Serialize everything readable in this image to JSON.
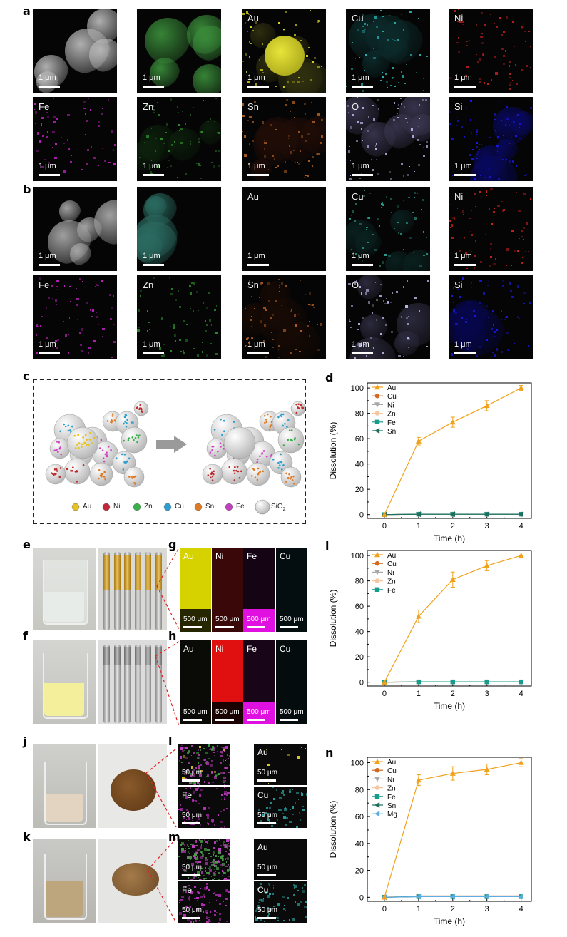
{
  "panel_letters": {
    "a": "a",
    "b": "b",
    "c": "c",
    "d": "d",
    "e": "e",
    "f": "f",
    "g": "g",
    "h": "h",
    "i": "i",
    "j": "j",
    "k": "k",
    "l": "l",
    "m": "m",
    "n": "n"
  },
  "scale": {
    "um1": "1 μm",
    "um500": "500 μm",
    "um50": "50 μm"
  },
  "elements": {
    "au": "Au",
    "cu": "Cu",
    "ni": "Ni",
    "fe": "Fe",
    "zn": "Zn",
    "sn": "Sn",
    "o": "O",
    "si": "Si",
    "mg": "Mg"
  },
  "legend_c": {
    "au": "Au",
    "ni": "Ni",
    "zn": "Zn",
    "cu": "Cu",
    "sn": "Sn",
    "fe": "Fe",
    "sio2": "SiO",
    "sio2_sub": "2"
  },
  "colors": {
    "au": "#f0a21c",
    "cu": "#d2691e",
    "ni": "#a8a8a8",
    "zn": "#f5c6a0",
    "fe": "#179c8a",
    "sn": "#1f6d5e",
    "mg": "#5dade2"
  },
  "chart_data": [
    {
      "type": "line",
      "panel": "d",
      "xlabel": "Time (h)",
      "ylabel": "Dissolution (%)",
      "x": [
        0,
        1,
        2,
        3,
        4
      ],
      "xlim": [
        -0.5,
        4.3
      ],
      "ylim": [
        -3,
        104
      ],
      "xticks": [
        "0",
        "1",
        "2",
        "3",
        "4"
      ],
      "yticks": [
        "0",
        "20",
        "40",
        "60",
        "80",
        "100"
      ],
      "series": [
        {
          "name": "Au",
          "values": [
            0,
            58,
            73,
            86,
            100
          ],
          "err": [
            0,
            3,
            4,
            4,
            2
          ]
        },
        {
          "name": "Cu",
          "values": [
            0,
            0.3,
            0.3,
            0.3,
            0.3
          ]
        },
        {
          "name": "Ni",
          "values": [
            0,
            0.3,
            0.3,
            0.3,
            0.3
          ]
        },
        {
          "name": "Zn",
          "values": [
            0,
            0.3,
            0.3,
            0.3,
            0.3
          ]
        },
        {
          "name": "Fe",
          "values": [
            0,
            0.3,
            0.3,
            0.3,
            0.3
          ]
        },
        {
          "name": "Sn",
          "values": [
            0,
            0.3,
            0.3,
            0.3,
            0.3
          ]
        }
      ]
    },
    {
      "type": "line",
      "panel": "i",
      "xlabel": "Time (h)",
      "ylabel": "Dissolution (%)",
      "x": [
        0,
        1,
        2,
        3,
        4
      ],
      "xlim": [
        -0.5,
        4.3
      ],
      "ylim": [
        -3,
        104
      ],
      "xticks": [
        "0",
        "1",
        "2",
        "3",
        "4"
      ],
      "yticks": [
        "0",
        "20",
        "40",
        "60",
        "80",
        "100"
      ],
      "series": [
        {
          "name": "Au",
          "values": [
            0,
            52,
            81,
            92,
            100
          ],
          "err": [
            0,
            5,
            6,
            4,
            2
          ]
        },
        {
          "name": "Cu",
          "values": [
            0,
            0.3,
            0.3,
            0.3,
            0.3
          ]
        },
        {
          "name": "Ni",
          "values": [
            0,
            0.3,
            0.3,
            0.3,
            0.3
          ]
        },
        {
          "name": "Zn",
          "values": [
            0,
            0.3,
            0.3,
            0.3,
            0.3
          ]
        },
        {
          "name": "Fe",
          "values": [
            0,
            0.3,
            0.3,
            0.3,
            0.3
          ]
        }
      ]
    },
    {
      "type": "line",
      "panel": "n",
      "xlabel": "Time (h)",
      "ylabel": "Dissolution (%)",
      "x": [
        0,
        1,
        2,
        3,
        4
      ],
      "xlim": [
        -0.5,
        4.3
      ],
      "ylim": [
        -3,
        104
      ],
      "xticks": [
        "0",
        "1",
        "2",
        "3",
        "4"
      ],
      "yticks": [
        "0",
        "20",
        "40",
        "60",
        "80",
        "100"
      ],
      "series": [
        {
          "name": "Au",
          "values": [
            0,
            87,
            92,
            95,
            100
          ],
          "err": [
            0,
            4,
            5,
            4,
            3
          ]
        },
        {
          "name": "Cu",
          "values": [
            0,
            1,
            1,
            1,
            1
          ]
        },
        {
          "name": "Ni",
          "values": [
            0,
            1,
            1,
            1,
            1
          ]
        },
        {
          "name": "Zn",
          "values": [
            0,
            1,
            1,
            1,
            1
          ]
        },
        {
          "name": "Fe",
          "values": [
            0,
            0.5,
            0.5,
            0.5,
            0.5
          ]
        },
        {
          "name": "Sn",
          "values": [
            0,
            0.5,
            0.5,
            0.5,
            0.5
          ]
        },
        {
          "name": "Mg",
          "values": [
            0,
            0.5,
            0.5,
            0.5,
            0.5
          ]
        }
      ]
    }
  ]
}
